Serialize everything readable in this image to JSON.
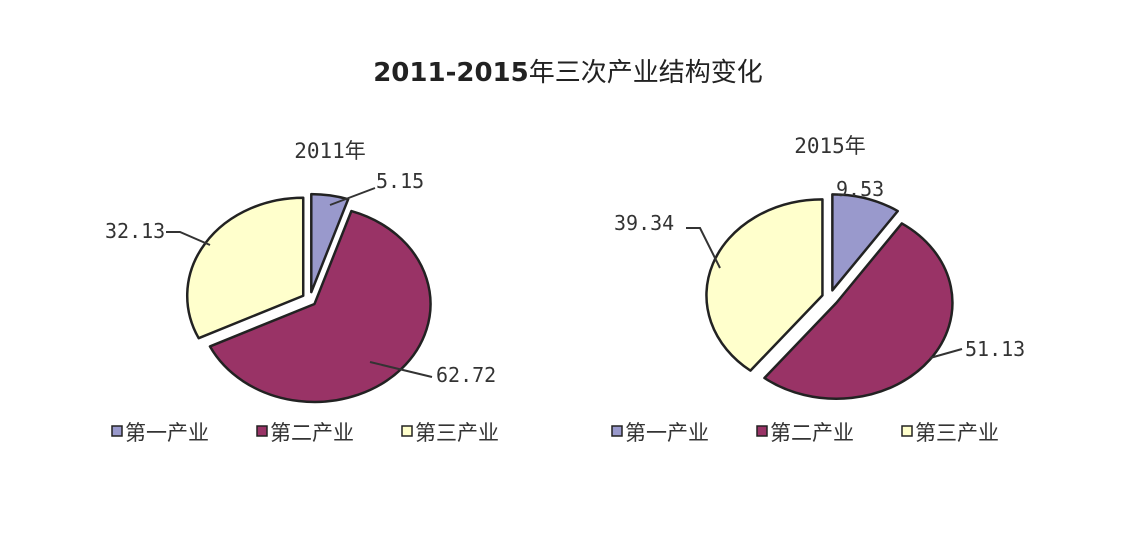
{
  "chart_data": [
    {
      "type": "pie",
      "title": "2011年",
      "categories": [
        "第一产业",
        "第二产业",
        "第三产业"
      ],
      "values": [
        5.15,
        62.72,
        32.13
      ],
      "value_labels": [
        "5.15",
        "62.72",
        "32.13"
      ],
      "colors": [
        "#9999CC",
        "#993366",
        "#FFFFCC"
      ],
      "legend": "bottom"
    },
    {
      "type": "pie",
      "title": "2015年",
      "categories": [
        "第一产业",
        "第二产业",
        "第三产业"
      ],
      "values": [
        9.53,
        51.13,
        39.34
      ],
      "value_labels": [
        "9.53",
        "51.13",
        "39.34"
      ],
      "colors": [
        "#9999CC",
        "#993366",
        "#FFFFCC"
      ],
      "legend": "bottom"
    }
  ],
  "title": "2011-2015年三次产业结构变化",
  "title_parts": {
    "bold": "2011-2015",
    "rest": "年三次产业结构变化"
  }
}
